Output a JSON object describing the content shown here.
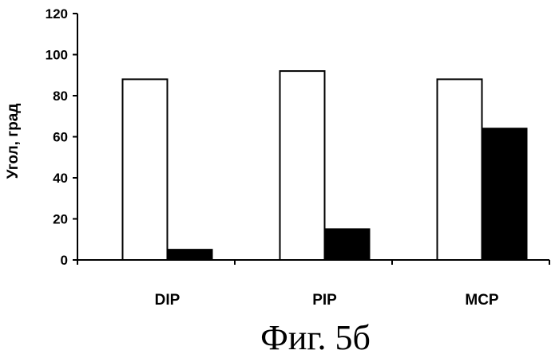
{
  "chart_data": {
    "type": "bar",
    "categories": [
      "DIP",
      "PIP",
      "MCP"
    ],
    "series": [
      {
        "values": [
          88,
          92,
          88
        ],
        "color": "#ffffff"
      },
      {
        "values": [
          5,
          15,
          64
        ],
        "color": "#000000"
      }
    ],
    "ylabel": "Угол, град",
    "xlabel": "",
    "ylim": [
      0,
      120
    ],
    "yticks": [
      0,
      20,
      40,
      60,
      80,
      100,
      120
    ],
    "grid": false,
    "legend": "none"
  },
  "caption": "Фиг. 5б"
}
